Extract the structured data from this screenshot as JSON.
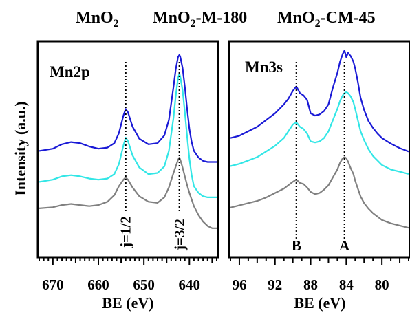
{
  "legend": [
    {
      "name": "MnO",
      "sub": "2",
      "rest": "",
      "color": "#1a1ad6"
    },
    {
      "name": "MnO",
      "sub": "2",
      "rest": "-M-180",
      "color": "#33e6e6"
    },
    {
      "name": "MnO",
      "sub": "2",
      "rest": "-CM-45",
      "color": "#808080"
    }
  ],
  "ylabel": "Intensity (a.u.)",
  "chart_data": [
    {
      "type": "line",
      "panel_label": "Mn2p",
      "xlabel": "BE (eV)",
      "xlim": [
        673,
        634
      ],
      "x_reversed": true,
      "xticks": [
        670,
        660,
        650,
        640
      ],
      "xtick_labels": [
        "670",
        "660",
        "650",
        "640"
      ],
      "markers": [
        {
          "x": 654.0,
          "label": "j=1/2"
        },
        {
          "x": 642.2,
          "label": "j=3/2"
        }
      ],
      "series": [
        {
          "name": "MnO2",
          "color": "#1a1ad6",
          "x": [
            673,
            670,
            668,
            666,
            664,
            662,
            660,
            658,
            656.5,
            655.5,
            654.5,
            654,
            653.5,
            652.5,
            651,
            649,
            647,
            645.5,
            644.5,
            643.5,
            643,
            642.5,
            642.2,
            642,
            641.5,
            641,
            640.5,
            640,
            639.5,
            639,
            638,
            637,
            636,
            635,
            634
          ],
          "y": [
            0.2,
            0.22,
            0.26,
            0.28,
            0.27,
            0.24,
            0.22,
            0.23,
            0.27,
            0.36,
            0.52,
            0.58,
            0.55,
            0.42,
            0.31,
            0.26,
            0.27,
            0.34,
            0.48,
            0.78,
            0.94,
            1.05,
            1.07,
            1.05,
            0.95,
            0.78,
            0.58,
            0.4,
            0.28,
            0.2,
            0.14,
            0.11,
            0.1,
            0.1,
            0.1
          ]
        },
        {
          "name": "MnO2-M-180",
          "color": "#33e6e6",
          "x": [
            673,
            670,
            668,
            666,
            664,
            662,
            660,
            658,
            656.5,
            655.5,
            654.5,
            654,
            653.5,
            652.5,
            651,
            649,
            647,
            645.5,
            644.5,
            643.5,
            643,
            642.5,
            642.2,
            642,
            641.5,
            641,
            640.5,
            640,
            639.5,
            639,
            638,
            637,
            636,
            635,
            634
          ],
          "y": [
            -0.08,
            -0.06,
            -0.03,
            -0.02,
            -0.03,
            -0.05,
            -0.06,
            -0.05,
            -0.01,
            0.08,
            0.25,
            0.32,
            0.29,
            0.16,
            0.05,
            -0.01,
            0.0,
            0.06,
            0.2,
            0.5,
            0.7,
            0.86,
            0.9,
            0.87,
            0.75,
            0.55,
            0.33,
            0.13,
            -0.02,
            -0.12,
            -0.18,
            -0.21,
            -0.22,
            -0.22,
            -0.22
          ]
        },
        {
          "name": "MnO2-CM-45",
          "color": "#808080",
          "x": [
            673,
            670,
            668,
            666,
            664,
            662,
            660,
            658,
            656.5,
            655.5,
            654.5,
            654,
            653.5,
            652.5,
            651,
            649,
            647,
            645.5,
            644.5,
            643.5,
            643,
            642.5,
            642.2,
            642,
            641.5,
            641,
            640.5,
            640,
            639.5,
            639,
            638,
            637,
            636,
            635,
            634
          ],
          "y": [
            -0.32,
            -0.31,
            -0.29,
            -0.28,
            -0.29,
            -0.3,
            -0.29,
            -0.26,
            -0.2,
            -0.12,
            -0.06,
            -0.04,
            -0.06,
            -0.13,
            -0.21,
            -0.26,
            -0.27,
            -0.22,
            -0.13,
            0.0,
            0.06,
            0.12,
            0.14,
            0.12,
            0.05,
            -0.03,
            -0.11,
            -0.18,
            -0.24,
            -0.3,
            -0.38,
            -0.44,
            -0.48,
            -0.5,
            -0.5
          ]
        }
      ]
    },
    {
      "type": "line",
      "panel_label": "Mn3s",
      "xlabel": "BE (eV)",
      "xlim": [
        97,
        77
      ],
      "x_reversed": true,
      "xticks": [
        96,
        92,
        88,
        84,
        80
      ],
      "xtick_labels": [
        "96",
        "92",
        "88",
        "84",
        "80"
      ],
      "markers": [
        {
          "x": 89.6,
          "label": "B"
        },
        {
          "x": 84.2,
          "label": "A"
        }
      ],
      "series": [
        {
          "name": "MnO2",
          "color": "#1a1ad6",
          "x": [
            97,
            96,
            95,
            94,
            93,
            92,
            91,
            90.5,
            90,
            89.6,
            89.2,
            88.8,
            88.4,
            88,
            87.5,
            87,
            86.5,
            86,
            85.5,
            85,
            84.7,
            84.4,
            84.2,
            84,
            83.8,
            83.5,
            83.2,
            83,
            82.7,
            82.4,
            82,
            81.5,
            81,
            80.5,
            80,
            79,
            78,
            77
          ],
          "y": [
            0.3,
            0.32,
            0.36,
            0.4,
            0.46,
            0.52,
            0.6,
            0.65,
            0.72,
            0.76,
            0.7,
            0.68,
            0.64,
            0.52,
            0.5,
            0.51,
            0.54,
            0.6,
            0.75,
            0.88,
            0.98,
            1.05,
            1.08,
            1.02,
            1.06,
            1.03,
            0.98,
            0.92,
            0.8,
            0.66,
            0.55,
            0.45,
            0.39,
            0.34,
            0.3,
            0.25,
            0.21,
            0.18
          ]
        },
        {
          "name": "MnO2-M-180",
          "color": "#33e6e6",
          "x": [
            97,
            96,
            95,
            94,
            93,
            92,
            91,
            90.5,
            90,
            89.6,
            89.2,
            88.8,
            88.4,
            88,
            87.5,
            87,
            86.5,
            86,
            85.5,
            85,
            84.7,
            84.4,
            84.2,
            84,
            83.8,
            83.5,
            83.2,
            83,
            82.7,
            82.4,
            82,
            81.5,
            81,
            80.5,
            80,
            79,
            78,
            77
          ],
          "y": [
            0.05,
            0.07,
            0.1,
            0.13,
            0.18,
            0.23,
            0.3,
            0.36,
            0.42,
            0.44,
            0.4,
            0.38,
            0.34,
            0.27,
            0.26,
            0.27,
            0.3,
            0.36,
            0.46,
            0.56,
            0.63,
            0.68,
            0.7,
            0.71,
            0.7,
            0.67,
            0.62,
            0.56,
            0.46,
            0.36,
            0.28,
            0.2,
            0.14,
            0.1,
            0.06,
            0.02,
            0.0,
            -0.02
          ]
        },
        {
          "name": "MnO2-CM-45",
          "color": "#808080",
          "x": [
            97,
            96,
            95,
            94,
            93,
            92,
            91,
            90.5,
            90,
            89.6,
            89.2,
            88.8,
            88.4,
            88,
            87.5,
            87,
            86.5,
            86,
            85.5,
            85,
            84.7,
            84.4,
            84.2,
            84,
            83.8,
            83.5,
            83.2,
            83,
            82.7,
            82.4,
            82,
            81.5,
            81,
            80.5,
            80,
            79,
            78,
            77
          ],
          "y": [
            -0.32,
            -0.3,
            -0.28,
            -0.26,
            -0.23,
            -0.19,
            -0.15,
            -0.12,
            -0.09,
            -0.07,
            -0.1,
            -0.11,
            -0.14,
            -0.18,
            -0.2,
            -0.19,
            -0.16,
            -0.12,
            -0.05,
            0.02,
            0.08,
            0.12,
            0.13,
            0.12,
            0.09,
            0.03,
            -0.02,
            -0.08,
            -0.15,
            -0.22,
            -0.28,
            -0.33,
            -0.37,
            -0.4,
            -0.43,
            -0.46,
            -0.48,
            -0.5
          ]
        }
      ]
    }
  ]
}
